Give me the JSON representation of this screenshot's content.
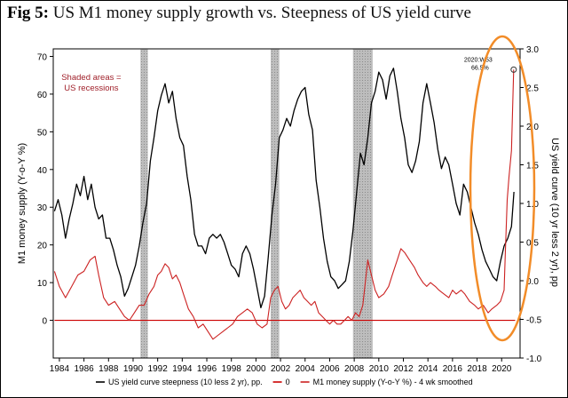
{
  "figure": {
    "label": "Fig 5:",
    "title": "US M1 money supply growth vs. Steepness of US yield curve"
  },
  "chart_data": {
    "type": "line",
    "title": "US M1 money supply growth vs. Steepness of US yield curve",
    "xlabel": "",
    "ylabel_left": "M1 money supply (Y-o-Y %)",
    "ylabel_right": "US yield curve (10 yr less 2 yr), pp",
    "xlim": [
      1983.5,
      2021.5
    ],
    "ylim_left": [
      -10,
      72
    ],
    "ylim_right": [
      -1.0,
      3.0
    ],
    "x_ticks": [
      "1984",
      "1986",
      "1988",
      "1990",
      "1992",
      "1994",
      "1996",
      "1998",
      "2000",
      "2002",
      "2004",
      "2006",
      "2008",
      "2010",
      "2012",
      "2014",
      "2016",
      "2018",
      "2020"
    ],
    "y_ticks_left": [
      "0",
      "10",
      "20",
      "30",
      "40",
      "50",
      "60",
      "70"
    ],
    "y_ticks_right": [
      "-1.0",
      "-0.5",
      "0.0",
      "0.5",
      "1.0",
      "1.5",
      "2.0",
      "2.5",
      "3.0"
    ],
    "recessions": [
      [
        1990.6,
        1991.2
      ],
      [
        2001.2,
        2001.9
      ],
      [
        2007.9,
        2009.5
      ]
    ],
    "recession_note": "Shaded areas = US recessions",
    "annotation": {
      "label": "2020:W53",
      "value_label": "66.5%",
      "x": 2020.98,
      "y": 66.5
    },
    "series": [
      {
        "name": "US yield curve steepness (10 less 2 yr), pp.",
        "axis": "right",
        "color": "#000000",
        "points": [
          [
            1983.6,
            0.9
          ],
          [
            1983.9,
            1.05
          ],
          [
            1984.2,
            0.85
          ],
          [
            1984.5,
            0.55
          ],
          [
            1984.8,
            0.8
          ],
          [
            1985.1,
            1.0
          ],
          [
            1985.4,
            1.25
          ],
          [
            1985.7,
            1.1
          ],
          [
            1986.0,
            1.35
          ],
          [
            1986.3,
            1.05
          ],
          [
            1986.6,
            1.25
          ],
          [
            1986.9,
            0.95
          ],
          [
            1987.2,
            0.8
          ],
          [
            1987.5,
            0.85
          ],
          [
            1987.8,
            0.55
          ],
          [
            1988.1,
            0.55
          ],
          [
            1988.4,
            0.4
          ],
          [
            1988.7,
            0.2
          ],
          [
            1989.0,
            0.05
          ],
          [
            1989.3,
            -0.2
          ],
          [
            1989.6,
            -0.1
          ],
          [
            1989.9,
            0.05
          ],
          [
            1990.2,
            0.2
          ],
          [
            1990.5,
            0.45
          ],
          [
            1990.8,
            0.75
          ],
          [
            1991.1,
            1.0
          ],
          [
            1991.4,
            1.55
          ],
          [
            1991.7,
            1.85
          ],
          [
            1992.0,
            2.2
          ],
          [
            1992.3,
            2.4
          ],
          [
            1992.6,
            2.55
          ],
          [
            1992.9,
            2.3
          ],
          [
            1993.2,
            2.45
          ],
          [
            1993.5,
            2.1
          ],
          [
            1993.8,
            1.85
          ],
          [
            1994.1,
            1.75
          ],
          [
            1994.4,
            1.35
          ],
          [
            1994.7,
            1.05
          ],
          [
            1995.0,
            0.6
          ],
          [
            1995.3,
            0.45
          ],
          [
            1995.6,
            0.45
          ],
          [
            1995.9,
            0.35
          ],
          [
            1996.2,
            0.55
          ],
          [
            1996.5,
            0.6
          ],
          [
            1996.8,
            0.55
          ],
          [
            1997.1,
            0.6
          ],
          [
            1997.4,
            0.5
          ],
          [
            1997.7,
            0.35
          ],
          [
            1998.0,
            0.2
          ],
          [
            1998.3,
            0.15
          ],
          [
            1998.6,
            0.05
          ],
          [
            1998.9,
            0.35
          ],
          [
            1999.2,
            0.45
          ],
          [
            1999.5,
            0.35
          ],
          [
            1999.8,
            0.15
          ],
          [
            2000.1,
            -0.1
          ],
          [
            2000.4,
            -0.35
          ],
          [
            2000.7,
            -0.2
          ],
          [
            2001.0,
            0.3
          ],
          [
            2001.3,
            0.85
          ],
          [
            2001.6,
            1.25
          ],
          [
            2001.9,
            1.85
          ],
          [
            2002.2,
            1.95
          ],
          [
            2002.5,
            2.1
          ],
          [
            2002.8,
            2.0
          ],
          [
            2003.1,
            2.2
          ],
          [
            2003.4,
            2.35
          ],
          [
            2003.7,
            2.45
          ],
          [
            2004.0,
            2.5
          ],
          [
            2004.3,
            2.15
          ],
          [
            2004.6,
            1.95
          ],
          [
            2004.9,
            1.3
          ],
          [
            2005.2,
            0.95
          ],
          [
            2005.5,
            0.55
          ],
          [
            2005.8,
            0.25
          ],
          [
            2006.1,
            0.05
          ],
          [
            2006.4,
            0.0
          ],
          [
            2006.7,
            -0.1
          ],
          [
            2007.0,
            -0.05
          ],
          [
            2007.3,
            0.0
          ],
          [
            2007.6,
            0.25
          ],
          [
            2007.9,
            0.65
          ],
          [
            2008.2,
            1.15
          ],
          [
            2008.5,
            1.65
          ],
          [
            2008.8,
            1.5
          ],
          [
            2009.1,
            1.85
          ],
          [
            2009.4,
            2.3
          ],
          [
            2009.7,
            2.45
          ],
          [
            2010.0,
            2.7
          ],
          [
            2010.3,
            2.6
          ],
          [
            2010.6,
            2.35
          ],
          [
            2010.9,
            2.65
          ],
          [
            2011.2,
            2.75
          ],
          [
            2011.5,
            2.45
          ],
          [
            2011.8,
            2.1
          ],
          [
            2012.1,
            1.85
          ],
          [
            2012.4,
            1.5
          ],
          [
            2012.7,
            1.4
          ],
          [
            2013.0,
            1.55
          ],
          [
            2013.3,
            1.8
          ],
          [
            2013.6,
            2.3
          ],
          [
            2013.9,
            2.55
          ],
          [
            2014.2,
            2.3
          ],
          [
            2014.5,
            2.05
          ],
          [
            2014.8,
            1.7
          ],
          [
            2015.1,
            1.45
          ],
          [
            2015.4,
            1.6
          ],
          [
            2015.7,
            1.5
          ],
          [
            2016.0,
            1.25
          ],
          [
            2016.3,
            1.0
          ],
          [
            2016.6,
            0.85
          ],
          [
            2016.9,
            1.25
          ],
          [
            2017.2,
            1.15
          ],
          [
            2017.5,
            0.95
          ],
          [
            2017.8,
            0.75
          ],
          [
            2018.1,
            0.6
          ],
          [
            2018.4,
            0.4
          ],
          [
            2018.7,
            0.25
          ],
          [
            2019.0,
            0.15
          ],
          [
            2019.3,
            0.05
          ],
          [
            2019.6,
            0.0
          ],
          [
            2019.9,
            0.25
          ],
          [
            2020.2,
            0.45
          ],
          [
            2020.5,
            0.55
          ],
          [
            2020.8,
            0.7
          ],
          [
            2021.0,
            1.15
          ]
        ]
      },
      {
        "name": "0",
        "axis": "left",
        "color": "#cc0000",
        "points": [
          [
            1983.6,
            0
          ],
          [
            2021.1,
            0
          ]
        ]
      },
      {
        "name": "M1 money supply (Y-o-Y %) - 4 wk smoothed",
        "axis": "left",
        "color": "#cc2222",
        "points": [
          [
            1983.6,
            13
          ],
          [
            1984.0,
            9
          ],
          [
            1984.5,
            6
          ],
          [
            1985.0,
            9
          ],
          [
            1985.5,
            12
          ],
          [
            1986.0,
            13
          ],
          [
            1986.5,
            16
          ],
          [
            1986.9,
            17
          ],
          [
            1987.2,
            12
          ],
          [
            1987.6,
            6
          ],
          [
            1988.0,
            4
          ],
          [
            1988.5,
            5
          ],
          [
            1988.9,
            3
          ],
          [
            1989.3,
            1
          ],
          [
            1989.7,
            0
          ],
          [
            1990.1,
            2
          ],
          [
            1990.5,
            4
          ],
          [
            1990.9,
            4
          ],
          [
            1991.3,
            7
          ],
          [
            1991.7,
            9
          ],
          [
            1992.0,
            12
          ],
          [
            1992.3,
            13
          ],
          [
            1992.6,
            15
          ],
          [
            1992.9,
            14
          ],
          [
            1993.2,
            11
          ],
          [
            1993.5,
            12
          ],
          [
            1993.8,
            10
          ],
          [
            1994.1,
            7
          ],
          [
            1994.5,
            3
          ],
          [
            1994.9,
            1
          ],
          [
            1995.3,
            -2
          ],
          [
            1995.7,
            -1
          ],
          [
            1996.1,
            -3
          ],
          [
            1996.5,
            -5
          ],
          [
            1996.9,
            -4
          ],
          [
            1997.3,
            -3
          ],
          [
            1997.7,
            -2
          ],
          [
            1998.1,
            -1
          ],
          [
            1998.5,
            1
          ],
          [
            1998.9,
            2
          ],
          [
            1999.3,
            3
          ],
          [
            1999.7,
            2
          ],
          [
            2000.1,
            -1
          ],
          [
            2000.5,
            -2
          ],
          [
            2000.9,
            -1
          ],
          [
            2001.2,
            6
          ],
          [
            2001.5,
            8
          ],
          [
            2001.8,
            9
          ],
          [
            2002.1,
            5
          ],
          [
            2002.4,
            3
          ],
          [
            2002.7,
            4
          ],
          [
            2003.0,
            6
          ],
          [
            2003.3,
            7
          ],
          [
            2003.6,
            8
          ],
          [
            2003.9,
            6
          ],
          [
            2004.2,
            5
          ],
          [
            2004.5,
            4
          ],
          [
            2004.8,
            5
          ],
          [
            2005.1,
            2
          ],
          [
            2005.4,
            1
          ],
          [
            2005.7,
            0
          ],
          [
            2006.0,
            -1
          ],
          [
            2006.3,
            0
          ],
          [
            2006.6,
            -1
          ],
          [
            2006.9,
            -1
          ],
          [
            2007.2,
            0
          ],
          [
            2007.5,
            1
          ],
          [
            2007.8,
            0
          ],
          [
            2008.1,
            2
          ],
          [
            2008.4,
            1
          ],
          [
            2008.7,
            4
          ],
          [
            2008.9,
            10
          ],
          [
            2009.1,
            16
          ],
          [
            2009.4,
            12
          ],
          [
            2009.7,
            8
          ],
          [
            2010.0,
            6
          ],
          [
            2010.4,
            7
          ],
          [
            2010.8,
            9
          ],
          [
            2011.1,
            12
          ],
          [
            2011.5,
            16
          ],
          [
            2011.8,
            19
          ],
          [
            2012.1,
            18
          ],
          [
            2012.5,
            16
          ],
          [
            2012.9,
            14
          ],
          [
            2013.2,
            12
          ],
          [
            2013.6,
            10
          ],
          [
            2013.9,
            9
          ],
          [
            2014.2,
            10
          ],
          [
            2014.6,
            9
          ],
          [
            2014.9,
            8
          ],
          [
            2015.3,
            7
          ],
          [
            2015.7,
            6
          ],
          [
            2016.0,
            8
          ],
          [
            2016.3,
            7
          ],
          [
            2016.7,
            8
          ],
          [
            2017.0,
            7
          ],
          [
            2017.4,
            5
          ],
          [
            2017.8,
            4
          ],
          [
            2018.1,
            3
          ],
          [
            2018.5,
            4
          ],
          [
            2018.9,
            2
          ],
          [
            2019.2,
            3
          ],
          [
            2019.6,
            4
          ],
          [
            2019.9,
            5
          ],
          [
            2020.2,
            8
          ],
          [
            2020.3,
            18
          ],
          [
            2020.45,
            32
          ],
          [
            2020.6,
            38
          ],
          [
            2020.8,
            45
          ],
          [
            2020.98,
            66.5
          ]
        ]
      }
    ]
  }
}
